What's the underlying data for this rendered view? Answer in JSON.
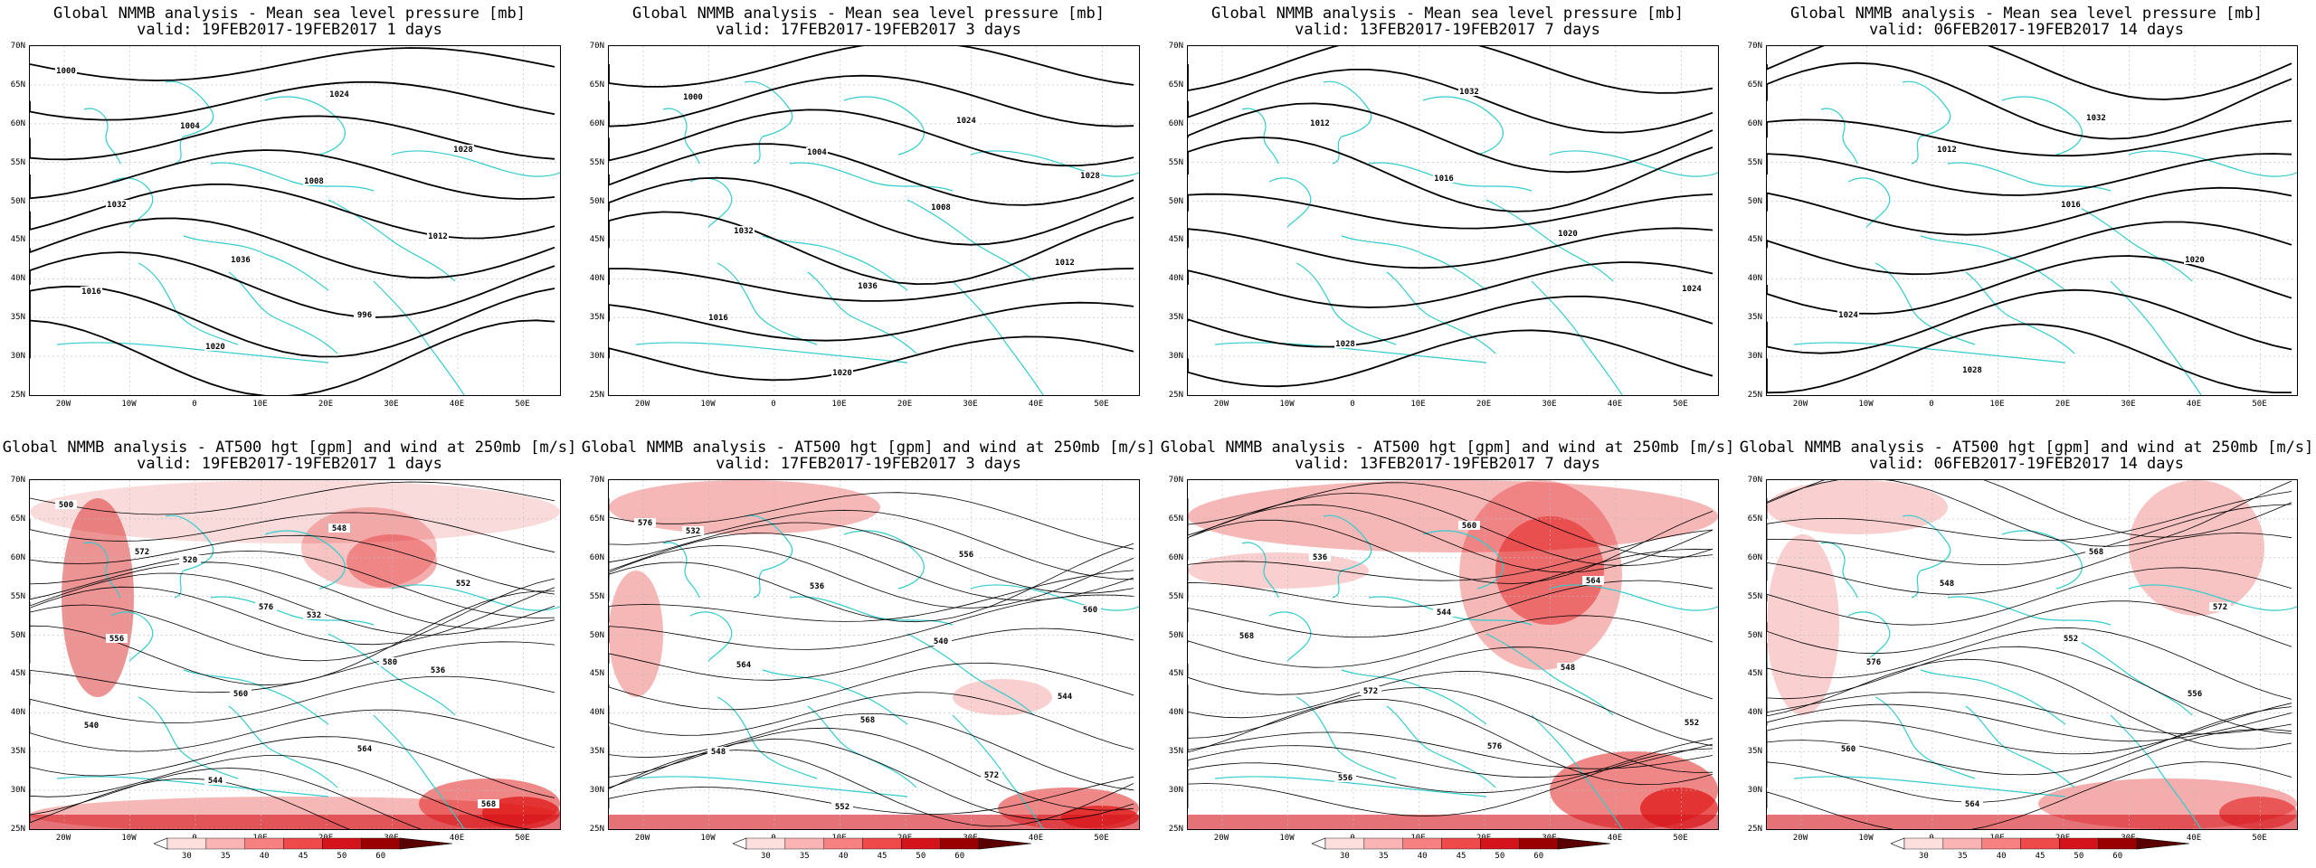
{
  "panels_top": [
    {
      "title1": "Global NMMB analysis - Mean sea level pressure [mb]",
      "title2": "valid: 19FEB2017-19FEB2017  1 days"
    },
    {
      "title1": "Global NMMB analysis - Mean sea level pressure [mb]",
      "title2": "valid: 17FEB2017-19FEB2017  3 days"
    },
    {
      "title1": "Global NMMB analysis - Mean sea level pressure [mb]",
      "title2": "valid: 13FEB2017-19FEB2017  7 days"
    },
    {
      "title1": "Global NMMB analysis - Mean sea level pressure [mb]",
      "title2": "valid: 06FEB2017-19FEB2017  14 days"
    }
  ],
  "panels_bottom": [
    {
      "title1": "Global NMMB analysis - AT500 hgt [gpm] and wind at 250mb [m/s]",
      "title2": "valid: 19FEB2017-19FEB2017  1 days"
    },
    {
      "title1": "Global NMMB analysis - AT500 hgt [gpm] and wind at 250mb [m/s]",
      "title2": "valid: 17FEB2017-19FEB2017  3 days"
    },
    {
      "title1": "Global NMMB analysis - AT500 hgt [gpm] and wind at 250mb [m/s]",
      "title2": "valid: 13FEB2017-19FEB2017  7 days"
    },
    {
      "title1": "Global NMMB analysis - AT500 hgt [gpm] and wind at 250mb [m/s]",
      "title2": "valid: 06FEB2017-19FEB2017  14 days"
    }
  ],
  "lat_labels": [
    "70N",
    "65N",
    "60N",
    "55N",
    "50N",
    "45N",
    "40N",
    "35N",
    "30N",
    "25N"
  ],
  "lon_labels": [
    "20W",
    "10W",
    "0",
    "10E",
    "20E",
    "30E",
    "40E",
    "50E"
  ],
  "colorbar": {
    "ticks": [
      "30",
      "35",
      "40",
      "45",
      "50",
      "60"
    ],
    "colors": [
      "#ffffff",
      "#fde0dd",
      "#fbb4b4",
      "#f78080",
      "#ef4a4a",
      "#d4141a",
      "#9a0000",
      "#5a0000"
    ]
  },
  "colors": {
    "coast": "#33cccc",
    "contour": "#000000",
    "grid": "#bbbbbb"
  },
  "mslp_labels": [
    [
      "1000",
      "1004",
      "1008",
      "1012",
      "1016",
      "1020",
      "1024",
      "1028",
      "1032",
      "1036",
      "996"
    ],
    [
      "1000",
      "1004",
      "1008",
      "1012",
      "1016",
      "1020",
      "1024",
      "1028",
      "1032",
      "1036"
    ],
    [
      "1012",
      "1016",
      "1020",
      "1024",
      "1028",
      "1032"
    ],
    [
      "1012",
      "1016",
      "1020",
      "1024",
      "1028",
      "1032"
    ]
  ],
  "z500_labels": [
    [
      "500",
      "520",
      "532",
      "536",
      "540",
      "544",
      "548",
      "552",
      "556",
      "560",
      "564",
      "568",
      "572",
      "576",
      "580"
    ],
    [
      "532",
      "536",
      "540",
      "544",
      "548",
      "552",
      "556",
      "560",
      "564",
      "568",
      "572",
      "576"
    ],
    [
      "536",
      "544",
      "548",
      "552",
      "556",
      "560",
      "564",
      "568",
      "572",
      "576"
    ],
    [
      "548",
      "552",
      "556",
      "560",
      "564",
      "568",
      "572",
      "576"
    ]
  ]
}
